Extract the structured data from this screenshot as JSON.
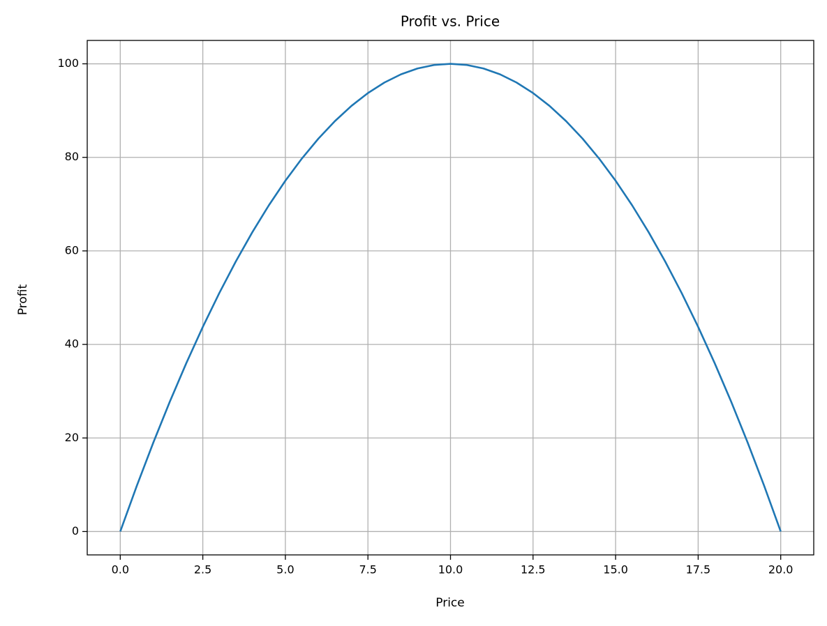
{
  "chart_data": {
    "type": "line",
    "title": "Profit vs. Price",
    "xlabel": "Price",
    "ylabel": "Profit",
    "x": [
      0,
      0.5,
      1,
      1.5,
      2,
      2.5,
      3,
      3.5,
      4,
      4.5,
      5,
      5.5,
      6,
      6.5,
      7,
      7.5,
      8,
      8.5,
      9,
      9.5,
      10,
      10.5,
      11,
      11.5,
      12,
      12.5,
      13,
      13.5,
      14,
      14.5,
      15,
      15.5,
      16,
      16.5,
      17,
      17.5,
      18,
      18.5,
      19,
      19.5,
      20
    ],
    "series": [
      {
        "name": "Profit",
        "color": "#1f77b4",
        "values": [
          0,
          9.75,
          19,
          27.75,
          36,
          43.75,
          51,
          57.75,
          64,
          69.75,
          75,
          79.75,
          84,
          87.75,
          91,
          93.75,
          96,
          97.75,
          99,
          99.75,
          100,
          99.75,
          99,
          97.75,
          96,
          93.75,
          91,
          87.75,
          84,
          79.75,
          75,
          69.75,
          64,
          57.75,
          51,
          43.75,
          36,
          27.75,
          19,
          9.75,
          0
        ]
      }
    ],
    "xlim": [
      -1,
      21
    ],
    "ylim": [
      -5,
      105
    ],
    "xticks": [
      {
        "value": 0,
        "label": "0.0"
      },
      2.5,
      {
        "value": 5,
        "label": "5.0"
      },
      7.5,
      {
        "value": 10,
        "label": "10.0"
      },
      12.5,
      {
        "value": 15,
        "label": "15.0"
      },
      17.5,
      {
        "value": 20,
        "label": "20.0"
      }
    ],
    "yticks": [
      0,
      20,
      40,
      60,
      80,
      100
    ],
    "grid": true
  }
}
